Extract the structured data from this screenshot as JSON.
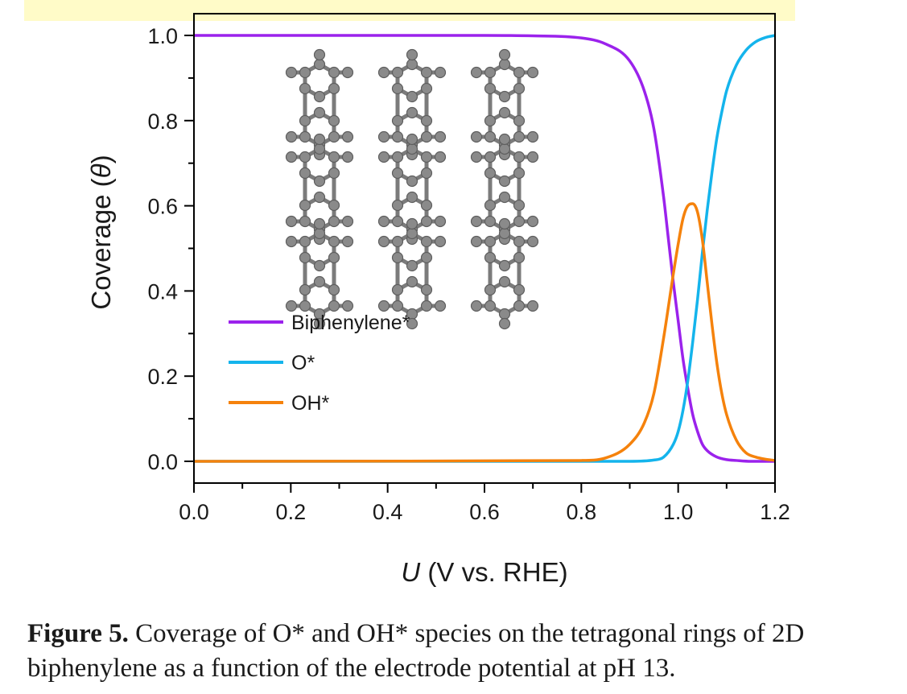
{
  "caption": {
    "label": "Figure 5.",
    "text": "Coverage of O* and OH* species on the tetragonal rings of 2D biphenylene as a function of the electrode potential at pH 13."
  },
  "chart_data": {
    "type": "line",
    "xlabel_italic": "U",
    "xlabel_rest": "(V vs. RHE)",
    "ylabel_text": "Coverage (",
    "ylabel_symbol": "θ",
    "ylabel_close": ")",
    "xlim": [
      0.0,
      1.2
    ],
    "ylim": [
      0.0,
      1.0
    ],
    "xticks": [
      "0.0",
      "0.2",
      "0.4",
      "0.6",
      "0.8",
      "1.0",
      "1.2"
    ],
    "yticks": [
      "0.0",
      "0.2",
      "0.4",
      "0.6",
      "0.8",
      "1.0"
    ],
    "legend_position": "center-left",
    "inset": "biphenylene lattice structure (gray atoms and bonds)",
    "series": [
      {
        "name": "Biphenylene*",
        "color": "#9b22ec",
        "x": [
          0.0,
          0.6,
          0.7,
          0.8,
          0.85,
          0.9,
          0.93,
          0.95,
          0.97,
          0.98,
          0.99,
          1.0,
          1.01,
          1.02,
          1.03,
          1.04,
          1.05,
          1.06,
          1.08,
          1.1,
          1.12,
          1.15,
          1.2
        ],
        "values": [
          1.0,
          1.0,
          0.999,
          0.994,
          0.98,
          0.94,
          0.87,
          0.78,
          0.62,
          0.52,
          0.42,
          0.33,
          0.24,
          0.17,
          0.11,
          0.07,
          0.04,
          0.025,
          0.01,
          0.004,
          0.002,
          0.0,
          0.0
        ]
      },
      {
        "name": "O*",
        "color": "#14b4ec",
        "x": [
          0.0,
          0.8,
          0.9,
          0.95,
          0.97,
          0.99,
          1.0,
          1.01,
          1.02,
          1.03,
          1.04,
          1.05,
          1.06,
          1.07,
          1.08,
          1.09,
          1.1,
          1.12,
          1.14,
          1.16,
          1.18,
          1.2
        ],
        "values": [
          0.0,
          0.0,
          0.0,
          0.003,
          0.01,
          0.04,
          0.07,
          0.12,
          0.19,
          0.28,
          0.38,
          0.49,
          0.59,
          0.68,
          0.76,
          0.82,
          0.87,
          0.93,
          0.965,
          0.985,
          0.995,
          1.0
        ]
      },
      {
        "name": "OH*",
        "color": "#f5820c",
        "x": [
          0.0,
          0.8,
          0.85,
          0.9,
          0.93,
          0.95,
          0.97,
          0.99,
          1.0,
          1.01,
          1.02,
          1.03,
          1.04,
          1.05,
          1.06,
          1.07,
          1.08,
          1.09,
          1.1,
          1.12,
          1.14,
          1.16,
          1.18,
          1.2
        ],
        "values": [
          0.0,
          0.002,
          0.008,
          0.04,
          0.09,
          0.16,
          0.29,
          0.44,
          0.51,
          0.57,
          0.6,
          0.605,
          0.585,
          0.52,
          0.42,
          0.32,
          0.23,
          0.16,
          0.11,
          0.05,
          0.02,
          0.01,
          0.005,
          0.002
        ]
      }
    ]
  }
}
